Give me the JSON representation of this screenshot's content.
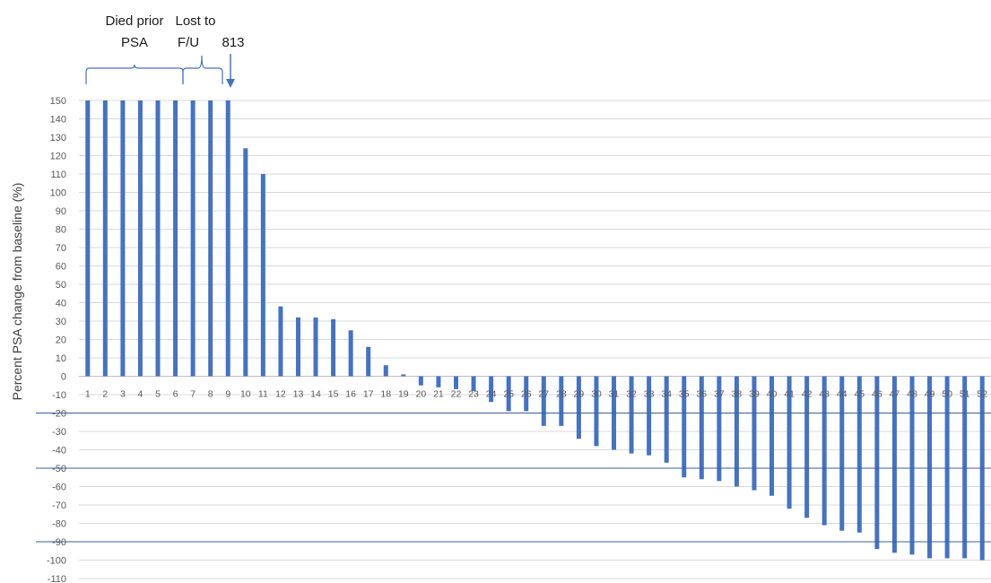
{
  "chart_data": {
    "type": "bar",
    "title": "",
    "xlabel": "",
    "ylabel": "Percent PSA change from baseline (%)",
    "ylim": [
      -110,
      150
    ],
    "ytick_step": 10,
    "grid": true,
    "legend": "none",
    "categories": [
      "1",
      "2",
      "3",
      "4",
      "5",
      "6",
      "7",
      "8",
      "9",
      "10",
      "11",
      "12",
      "13",
      "14",
      "15",
      "16",
      "17",
      "18",
      "19",
      "20",
      "21",
      "22",
      "23",
      "24",
      "25",
      "26",
      "27",
      "28",
      "29",
      "30",
      "31",
      "32",
      "33",
      "34",
      "35",
      "36",
      "37",
      "38",
      "39",
      "40",
      "41",
      "42",
      "43",
      "44",
      "45",
      "46",
      "47",
      "48",
      "49",
      "50",
      "51",
      "52"
    ],
    "values": [
      150,
      150,
      150,
      150,
      150,
      150,
      150,
      150,
      150,
      124,
      110,
      38,
      32,
      32,
      31,
      25,
      16,
      6,
      1,
      -5,
      -6,
      -7,
      -8,
      -14,
      -19,
      -19,
      -27,
      -27,
      -34,
      -38,
      -40,
      -42,
      -43,
      -47,
      -55,
      -56,
      -57,
      -60,
      -62,
      -65,
      -72,
      -77,
      -81,
      -84,
      -85,
      -94,
      -96,
      -97,
      -99,
      -99,
      -99,
      -100
    ],
    "reference_lines": [
      -20,
      -50,
      -90
    ],
    "bar_color": "#4472c4",
    "reference_line_color": "#3a5f9e",
    "annotations": {
      "died_prior": [
        "Died prior",
        "PSA"
      ],
      "lost_to_fu": [
        "Lost to",
        "F/U"
      ],
      "arrow_label": "813"
    }
  }
}
